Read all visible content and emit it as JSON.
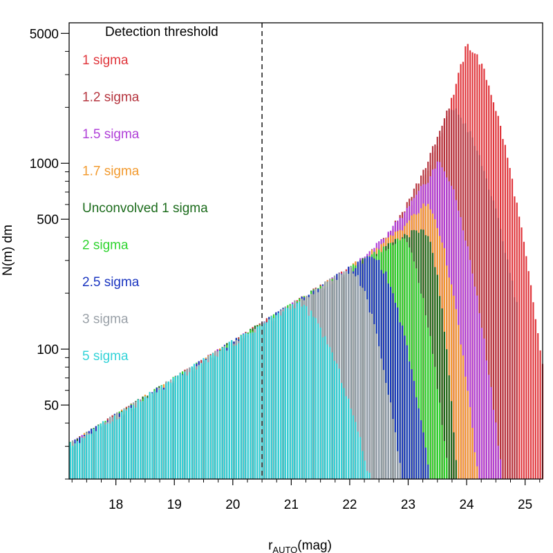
{
  "chart_data": {
    "type": "bar",
    "xlabel_main": "r",
    "xlabel_sub": "AUTO",
    "xlabel_unit": "(mag)",
    "ylabel": "N(m) dm",
    "x_range": [
      17.2,
      25.3
    ],
    "y_range": [
      20,
      5700
    ],
    "y_scale": "log",
    "bin_width": 0.04,
    "x_ticks": [
      "18",
      "19",
      "20",
      "21",
      "22",
      "23",
      "24",
      "25"
    ],
    "y_tick_labels": [
      "50",
      "100",
      "500",
      "1000",
      "5000"
    ],
    "y_tick_values": [
      50,
      100,
      500,
      1000,
      5000
    ],
    "y_minor_ticks": [
      20,
      30,
      40,
      60,
      70,
      80,
      90,
      200,
      300,
      400,
      600,
      700,
      800,
      900,
      2000,
      3000,
      4000
    ],
    "vline": {
      "x": 20.5,
      "style": "dashed"
    },
    "legend_title": "Detection threshold",
    "base": {
      "start": 17.2,
      "value": 30,
      "slope_dex_per_mag": 0.198
    },
    "series": [
      {
        "name": "1  sigma",
        "color": "#e0353b",
        "peak_x": 24.0,
        "peak_value": 4300,
        "end_x": 25.3,
        "end_value": 80
      },
      {
        "name": "1.2  sigma",
        "color": "#b5343e",
        "peak_x": 23.7,
        "peak_value": 2000,
        "end_x": 24.9,
        "end_value": 150
      },
      {
        "name": "1.5  sigma",
        "color": "#b040d8",
        "peak_x": 23.5,
        "peak_value": 1000,
        "end_x": 24.62,
        "end_value": 20
      },
      {
        "name": "1.7  sigma",
        "color": "#f29a2e",
        "peak_x": 23.3,
        "peak_value": 600,
        "end_x": 24.2,
        "end_value": 20
      },
      {
        "name": "Unconvolved 1 sigma",
        "color": "#1b6b1b",
        "peak_x": 23.3,
        "peak_value": 420,
        "end_x": 23.85,
        "end_value": 20
      },
      {
        "name": "2  sigma",
        "color": "#2fd42f",
        "peak_x": 22.9,
        "peak_value": 390,
        "end_x": 23.7,
        "end_value": 20
      },
      {
        "name": "2.5  sigma",
        "color": "#1a35c0",
        "peak_x": 22.4,
        "peak_value": 310,
        "end_x": 23.38,
        "end_value": 20
      },
      {
        "name": "3  sigma",
        "color": "#9aa1a8",
        "peak_x": 22.0,
        "peak_value": 270,
        "end_x": 22.9,
        "end_value": 20
      },
      {
        "name": "5  sigma",
        "color": "#33d3d8",
        "peak_x": 21.1,
        "peak_value": 175,
        "end_x": 22.35,
        "end_value": 20
      }
    ]
  }
}
